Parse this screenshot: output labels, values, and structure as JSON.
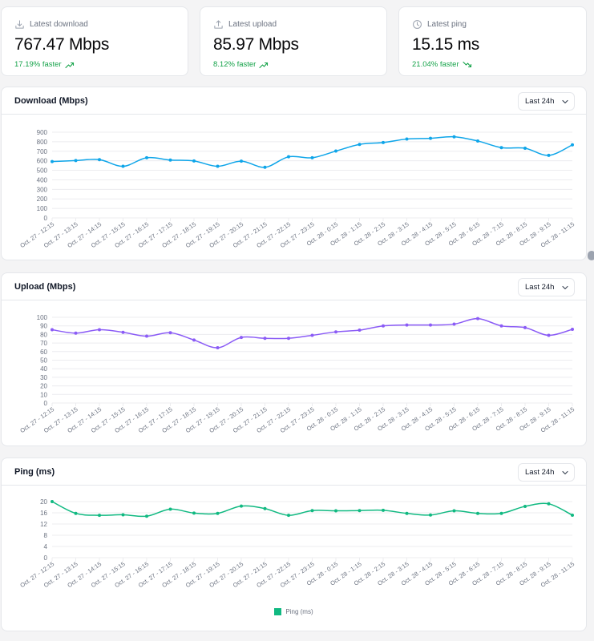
{
  "stats": [
    {
      "label": "Latest download",
      "value": "767.47 Mbps",
      "delta": "17.19% faster",
      "icon": "download-icon",
      "trend": "up"
    },
    {
      "label": "Latest upload",
      "value": "85.97 Mbps",
      "delta": "8.12% faster",
      "icon": "upload-icon",
      "trend": "up"
    },
    {
      "label": "Latest ping",
      "value": "15.15 ms",
      "delta": "21.04% faster",
      "icon": "clock-icon",
      "trend": "down"
    }
  ],
  "range_label": "Last 24h",
  "colors": {
    "download": "#0ea5e9",
    "upload": "#8b5cf6",
    "ping": "#10b981",
    "positive": "#16a34a"
  },
  "chart_data": [
    {
      "type": "line",
      "title": "Download (Mbps)",
      "x": [
        "Oct. 27 - 12:15",
        "Oct. 27 - 13:15",
        "Oct. 27 - 14:15",
        "Oct. 27 - 15:15",
        "Oct. 27 - 16:15",
        "Oct. 27 - 17:15",
        "Oct. 27 - 18:15",
        "Oct. 27 - 19:15",
        "Oct. 27 - 20:15",
        "Oct. 27 - 21:15",
        "Oct. 27 - 22:15",
        "Oct. 27 - 23:15",
        "Oct. 28 - 0:15",
        "Oct. 28 - 1:15",
        "Oct. 28 - 2:15",
        "Oct. 28 - 3:15",
        "Oct. 28 - 4:15",
        "Oct. 28 - 5:15",
        "Oct. 28 - 6:15",
        "Oct. 28 - 7:15",
        "Oct. 28 - 8:15",
        "Oct. 28 - 9:15",
        "Oct. 28 - 11:15"
      ],
      "series": [
        {
          "values": [
            592,
            602,
            612,
            542,
            632,
            608,
            598,
            542,
            596,
            532,
            642,
            632,
            702,
            772,
            792,
            828,
            836,
            852,
            808,
            738,
            732,
            657,
            767
          ]
        }
      ],
      "yticks": [
        0,
        100,
        200,
        300,
        400,
        500,
        600,
        700,
        800,
        900
      ],
      "ylim": [
        0,
        900
      ],
      "grid": true
    },
    {
      "type": "line",
      "title": "Upload (Mbps)",
      "x": [
        "Oct. 27 - 12:15",
        "Oct. 27 - 13:15",
        "Oct. 27 - 14:15",
        "Oct. 27 - 15:15",
        "Oct. 27 - 16:15",
        "Oct. 27 - 17:15",
        "Oct. 27 - 18:15",
        "Oct. 27 - 19:15",
        "Oct. 27 - 20:15",
        "Oct. 27 - 21:15",
        "Oct. 27 - 22:15",
        "Oct. 27 - 23:15",
        "Oct. 28 - 0:15",
        "Oct. 28 - 1:15",
        "Oct. 28 - 2:15",
        "Oct. 28 - 3:15",
        "Oct. 28 - 4:15",
        "Oct. 28 - 5:15",
        "Oct. 28 - 6:15",
        "Oct. 28 - 7:15",
        "Oct. 28 - 8:15",
        "Oct. 28 - 9:15",
        "Oct. 28 - 11:15"
      ],
      "series": [
        {
          "values": [
            85.5,
            81.5,
            85.5,
            82.5,
            78,
            82,
            73.5,
            64.5,
            76.5,
            75.5,
            75.5,
            79,
            83,
            85,
            90,
            91,
            91,
            92,
            98.5,
            90,
            88,
            79,
            85.97
          ]
        }
      ],
      "yticks": [
        0,
        10,
        20,
        30,
        40,
        50,
        60,
        70,
        80,
        90,
        100
      ],
      "ylim": [
        0,
        100
      ],
      "grid": true
    },
    {
      "type": "line",
      "title": "Ping (ms)",
      "x": [
        "Oct. 27 - 12:15",
        "Oct. 27 - 13:15",
        "Oct. 27 - 14:15",
        "Oct. 27 - 15:15",
        "Oct. 27 - 16:15",
        "Oct. 27 - 17:15",
        "Oct. 27 - 18:15",
        "Oct. 27 - 19:15",
        "Oct. 27 - 20:15",
        "Oct. 27 - 21:15",
        "Oct. 27 - 22:15",
        "Oct. 27 - 23:15",
        "Oct. 28 - 0:15",
        "Oct. 28 - 1:15",
        "Oct. 28 - 2:15",
        "Oct. 28 - 3:15",
        "Oct. 28 - 4:15",
        "Oct. 28 - 5:15",
        "Oct. 28 - 6:15",
        "Oct. 28 - 7:15",
        "Oct. 28 - 8:15",
        "Oct. 28 - 9:15",
        "Oct. 28 - 11:15"
      ],
      "series": [
        {
          "name": "Ping (ms)",
          "values": [
            20,
            15.8,
            15.1,
            15.3,
            14.8,
            17.3,
            15.9,
            15.8,
            18.4,
            17.5,
            15.1,
            16.8,
            16.7,
            16.8,
            16.9,
            15.8,
            15.2,
            16.7,
            15.8,
            15.8,
            18.3,
            19.2,
            15.15
          ]
        }
      ],
      "yticks": [
        0,
        4,
        8,
        12,
        16,
        20
      ],
      "ylim": [
        0,
        20
      ],
      "legend": "bottom",
      "grid": true
    }
  ]
}
